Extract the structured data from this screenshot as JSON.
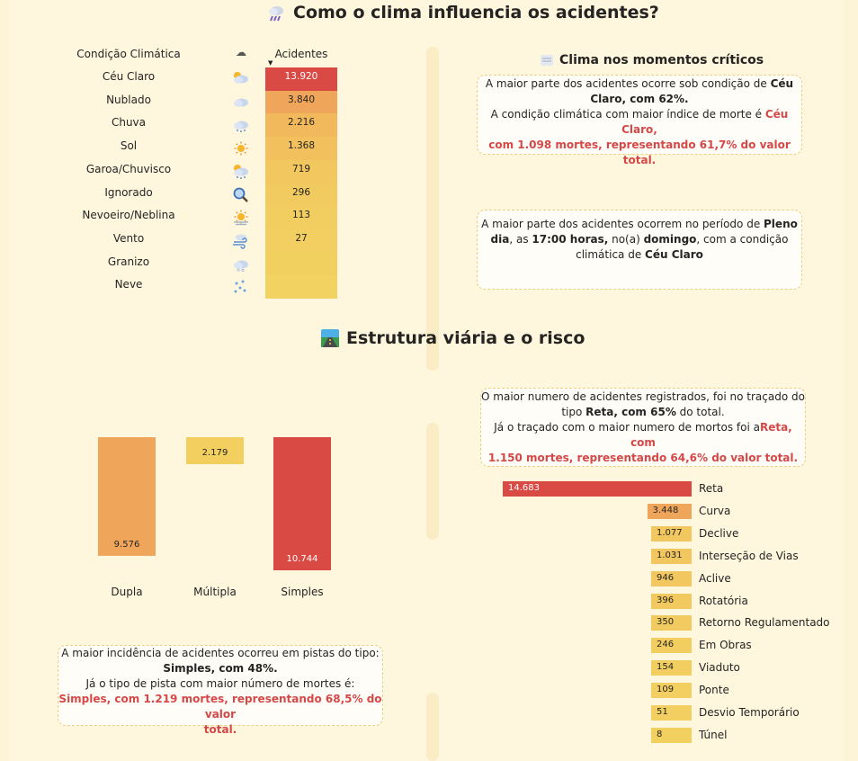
{
  "section1": {
    "title": "Como o clima influencia os acidentes?",
    "table": {
      "col_condition": "Condição Climática",
      "col_icon": "☁",
      "col_value": "Acidentes",
      "sort_arrow": "▼",
      "rows": [
        {
          "label": "Céu Claro",
          "icon": "sun-cloud",
          "value": "13.920"
        },
        {
          "label": "Nublado",
          "icon": "cloud",
          "value": "3.840"
        },
        {
          "label": "Chuva",
          "icon": "rain-cloud",
          "value": "2.216"
        },
        {
          "label": "Sol",
          "icon": "sun",
          "value": "1.368"
        },
        {
          "label": "Garoa/Chuvisco",
          "icon": "drizzle",
          "value": "719"
        },
        {
          "label": "Ignorado",
          "icon": "magnifier",
          "value": "296"
        },
        {
          "label": "Nevoeiro/Neblina",
          "icon": "fog-sun",
          "value": "113"
        },
        {
          "label": "Vento",
          "icon": "wind",
          "value": "27"
        },
        {
          "label": "Granizo",
          "icon": "hail",
          "value": ""
        },
        {
          "label": "Neve",
          "icon": "snow",
          "value": ""
        }
      ],
      "row_colors": [
        "#d94a45",
        "#f0a65a",
        "#f2b95c",
        "#f2c15e",
        "#f2c75f",
        "#f2cb60",
        "#f2cd60",
        "#f2cf60",
        "#f2d060",
        "#f2d260"
      ]
    }
  },
  "critical": {
    "title": "Clima nos momentos críticos",
    "card1": {
      "l1a": "A maior parte dos acidentes ocorre sob condição de ",
      "l1b": "Céu",
      "l2": "Claro, com 62%.",
      "l3a": "A condição climática com maior índice de morte é ",
      "l3b": "Céu Claro,",
      "l4": "com 1.098 mortes, representando 61,7% do valor total."
    },
    "card2": {
      "l1a": "A maior parte dos acidentes ocorrem no período de ",
      "l1b": "Pleno",
      "l2a": "dia",
      "l2b": ", as ",
      "l2c": "17:00 horas,",
      "l2d": " no(a) ",
      "l2e": "domingo",
      "l2f": ", com a condição",
      "l3a": "climática de ",
      "l3b": "Céu Claro"
    }
  },
  "section2": {
    "title": "Estrutura viária e o risco",
    "card_pista": {
      "l1": "A maior incidência de acidentes ocorreu em pistas do tipo:",
      "l2": "Simples, com 48%.",
      "l3": "Já o tipo de pista com maior número de mortes é:",
      "l4": "Simples, com 1.219 mortes, representando 68,5% do valor",
      "l5": "total."
    },
    "card_tracado": {
      "l1": "O maior numero de acidentes registrados, foi no traçado do",
      "l2a": "tipo ",
      "l2b": "Reta, com 65%",
      "l2c": " do total.",
      "l3a": "Já o traçado com o maior numero de mortos foi a",
      "l3b": "Reta, com",
      "l4": "1.150 mortes, representando 64,6% do valor total."
    }
  },
  "chart_data": [
    {
      "type": "table",
      "columns": [
        "Condição Climática",
        "Acidentes"
      ],
      "categories": [
        "Céu Claro",
        "Nublado",
        "Chuva",
        "Sol",
        "Garoa/Chuvisco",
        "Ignorado",
        "Nevoeiro/Neblina",
        "Vento",
        "Granizo",
        "Neve"
      ],
      "values": [
        13920,
        3840,
        2216,
        1368,
        719,
        296,
        113,
        27,
        null,
        null
      ]
    },
    {
      "type": "bar",
      "categories": [
        "Dupla",
        "Múltipla",
        "Simples"
      ],
      "values": [
        9576,
        2179,
        10744
      ],
      "value_labels": [
        "9.576",
        "2.179",
        "10.744"
      ],
      "colors": [
        "#f0a65a",
        "#f2cf5e",
        "#d94a45"
      ],
      "ylim": [
        0,
        10744
      ]
    },
    {
      "type": "bar",
      "orientation": "horizontal",
      "categories": [
        "Reta",
        "Curva",
        "Declive",
        "Interseção de Vias",
        "Aclive",
        "Rotatória",
        "Retorno Regulamentado",
        "Em Obras",
        "Viaduto",
        "Ponte",
        "Desvio Temporário",
        "Túnel"
      ],
      "values": [
        14683,
        3448,
        1077,
        1031,
        946,
        396,
        350,
        246,
        154,
        109,
        51,
        8
      ],
      "value_labels": [
        "14.683",
        "3.448",
        "1.077",
        "1.031",
        "946",
        "396",
        "350",
        "246",
        "154",
        "109",
        "51",
        "8"
      ],
      "colors": [
        "#d94a45",
        "#f0a65a",
        "#f2c75f",
        "#f2c75f",
        "#f2c75f",
        "#f2c95f",
        "#f2cb60",
        "#f2cd60",
        "#f2ce60",
        "#f2cf60",
        "#f2cf60",
        "#f2d060"
      ]
    }
  ]
}
